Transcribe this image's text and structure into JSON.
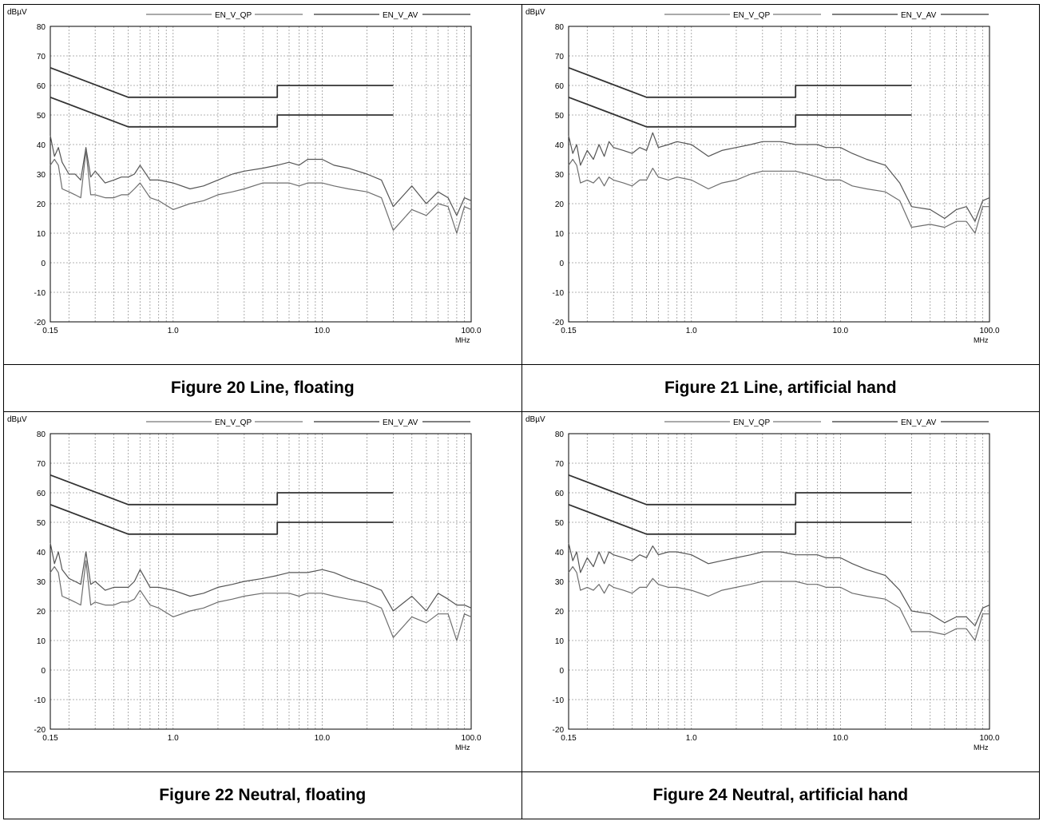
{
  "header_fragment": "  ",
  "colors": {
    "qp_trace": "#555555",
    "av_trace": "#6e6e6e",
    "limit_line": "#333333",
    "grid": "#9a9a9a",
    "border": "#000000"
  },
  "figures": [
    {
      "caption": "Figure 20 Line, floating"
    },
    {
      "caption": "Figure 21 Line, artificial hand"
    },
    {
      "caption": "Figure 22 Neutral, floating"
    },
    {
      "caption": "Figure 24 Neutral, artificial hand"
    }
  ],
  "chart_data": [
    {
      "type": "line",
      "ylabel": "dBµV",
      "xlabel": "MHz",
      "x_scale": "log",
      "xlim": [
        0.15,
        100
      ],
      "ylim": [
        -20,
        80
      ],
      "x_tick_labels": [
        "0.15",
        "1.0",
        "10.0",
        "100.0"
      ],
      "y_tick_labels": [
        "80",
        "70",
        "60",
        "50",
        "40",
        "30",
        "20",
        "10",
        "0",
        "-10",
        "-20"
      ],
      "grid": true,
      "legend": "top",
      "series": [
        {
          "name": "EN_V_QP",
          "kind": "limit",
          "x": [
            0.15,
            0.5,
            0.5,
            5,
            5,
            30
          ],
          "y": [
            66,
            56,
            56,
            56,
            60,
            60
          ]
        },
        {
          "name": "EN_V_AV",
          "kind": "limit",
          "x": [
            0.15,
            0.5,
            0.5,
            5,
            5,
            30
          ],
          "y": [
            56,
            46,
            46,
            46,
            50,
            50
          ]
        },
        {
          "kind": "measured_qp",
          "x": [
            0.15,
            0.16,
            0.17,
            0.18,
            0.2,
            0.22,
            0.24,
            0.26,
            0.28,
            0.3,
            0.35,
            0.4,
            0.45,
            0.5,
            0.55,
            0.6,
            0.7,
            0.8,
            1.0,
            1.3,
            1.6,
            2,
            2.5,
            3,
            4,
            5,
            6,
            7,
            8,
            10,
            12,
            15,
            20,
            25,
            30,
            40,
            50,
            60,
            70,
            80,
            90,
            100
          ],
          "y": [
            43,
            36,
            39,
            34,
            30,
            30,
            28,
            39,
            29,
            31,
            27,
            28,
            29,
            29,
            30,
            33,
            28,
            28,
            27,
            25,
            26,
            28,
            30,
            31,
            32,
            33,
            34,
            33,
            35,
            35,
            33,
            32,
            30,
            28,
            19,
            26,
            20,
            24,
            22,
            16,
            22,
            21
          ]
        },
        {
          "kind": "measured_av",
          "x": [
            0.15,
            0.16,
            0.17,
            0.18,
            0.2,
            0.22,
            0.24,
            0.26,
            0.28,
            0.3,
            0.35,
            0.4,
            0.45,
            0.5,
            0.55,
            0.6,
            0.7,
            0.8,
            1.0,
            1.3,
            1.6,
            2,
            2.5,
            3,
            4,
            5,
            6,
            7,
            8,
            10,
            12,
            15,
            20,
            25,
            30,
            40,
            50,
            60,
            70,
            80,
            90,
            100
          ],
          "y": [
            33,
            35,
            33,
            25,
            24,
            23,
            22,
            38,
            23,
            23,
            22,
            22,
            23,
            23,
            25,
            27,
            22,
            21,
            18,
            20,
            21,
            23,
            24,
            25,
            27,
            27,
            27,
            26,
            27,
            27,
            26,
            25,
            24,
            22,
            11,
            18,
            16,
            20,
            19,
            10,
            19,
            18
          ]
        }
      ]
    },
    {
      "type": "line",
      "ylabel": "dBµV",
      "xlabel": "MHz",
      "x_scale": "log",
      "xlim": [
        0.15,
        100
      ],
      "ylim": [
        -20,
        80
      ],
      "x_tick_labels": [
        "0.15",
        "1.0",
        "10.0",
        "100.0"
      ],
      "y_tick_labels": [
        "80",
        "70",
        "60",
        "50",
        "40",
        "30",
        "20",
        "10",
        "0",
        "-10",
        "-20"
      ],
      "grid": true,
      "legend": "top",
      "series": [
        {
          "name": "EN_V_QP",
          "kind": "limit",
          "x": [
            0.15,
            0.5,
            0.5,
            5,
            5,
            30
          ],
          "y": [
            66,
            56,
            56,
            56,
            60,
            60
          ]
        },
        {
          "name": "EN_V_AV",
          "kind": "limit",
          "x": [
            0.15,
            0.5,
            0.5,
            5,
            5,
            30
          ],
          "y": [
            56,
            46,
            46,
            46,
            50,
            50
          ]
        },
        {
          "kind": "measured_qp",
          "x": [
            0.15,
            0.16,
            0.17,
            0.18,
            0.2,
            0.22,
            0.24,
            0.26,
            0.28,
            0.3,
            0.35,
            0.4,
            0.45,
            0.5,
            0.55,
            0.6,
            0.7,
            0.8,
            1.0,
            1.3,
            1.6,
            2,
            2.5,
            3,
            4,
            5,
            6,
            7,
            8,
            10,
            12,
            15,
            20,
            25,
            30,
            40,
            50,
            60,
            70,
            80,
            90,
            100
          ],
          "y": [
            43,
            37,
            40,
            33,
            38,
            35,
            40,
            36,
            41,
            39,
            38,
            37,
            39,
            38,
            44,
            39,
            40,
            41,
            40,
            36,
            38,
            39,
            40,
            41,
            41,
            40,
            40,
            40,
            39,
            39,
            37,
            35,
            33,
            27,
            19,
            18,
            15,
            18,
            19,
            14,
            21,
            22
          ]
        },
        {
          "kind": "measured_av",
          "x": [
            0.15,
            0.16,
            0.17,
            0.18,
            0.2,
            0.22,
            0.24,
            0.26,
            0.28,
            0.3,
            0.35,
            0.4,
            0.45,
            0.5,
            0.55,
            0.6,
            0.7,
            0.8,
            1.0,
            1.3,
            1.6,
            2,
            2.5,
            3,
            4,
            5,
            6,
            7,
            8,
            10,
            12,
            15,
            20,
            25,
            30,
            40,
            50,
            60,
            70,
            80,
            90,
            100
          ],
          "y": [
            33,
            35,
            33,
            27,
            28,
            27,
            29,
            26,
            29,
            28,
            27,
            26,
            28,
            28,
            32,
            29,
            28,
            29,
            28,
            25,
            27,
            28,
            30,
            31,
            31,
            31,
            30,
            29,
            28,
            28,
            26,
            25,
            24,
            21,
            12,
            13,
            12,
            14,
            14,
            10,
            19,
            19
          ]
        }
      ]
    },
    {
      "type": "line",
      "ylabel": "dBµV",
      "xlabel": "MHz",
      "x_scale": "log",
      "xlim": [
        0.15,
        100
      ],
      "ylim": [
        -20,
        80
      ],
      "x_tick_labels": [
        "0.15",
        "1.0",
        "10.0",
        "100.0"
      ],
      "y_tick_labels": [
        "80",
        "70",
        "60",
        "50",
        "40",
        "30",
        "20",
        "10",
        "0",
        "-10",
        "-20"
      ],
      "grid": true,
      "legend": "top",
      "series": [
        {
          "name": "EN_V_QP",
          "kind": "limit",
          "x": [
            0.15,
            0.5,
            0.5,
            5,
            5,
            30
          ],
          "y": [
            66,
            56,
            56,
            56,
            60,
            60
          ]
        },
        {
          "name": "EN_V_AV",
          "kind": "limit",
          "x": [
            0.15,
            0.5,
            0.5,
            5,
            5,
            30
          ],
          "y": [
            56,
            46,
            46,
            46,
            50,
            50
          ]
        },
        {
          "kind": "measured_qp",
          "x": [
            0.15,
            0.16,
            0.17,
            0.18,
            0.2,
            0.22,
            0.24,
            0.26,
            0.28,
            0.3,
            0.35,
            0.4,
            0.45,
            0.5,
            0.55,
            0.6,
            0.7,
            0.8,
            1.0,
            1.3,
            1.6,
            2,
            2.5,
            3,
            4,
            5,
            6,
            7,
            8,
            10,
            12,
            15,
            20,
            25,
            30,
            40,
            50,
            60,
            70,
            80,
            90,
            100
          ],
          "y": [
            43,
            36,
            40,
            34,
            31,
            30,
            29,
            40,
            29,
            30,
            27,
            28,
            28,
            28,
            30,
            34,
            28,
            28,
            27,
            25,
            26,
            28,
            29,
            30,
            31,
            32,
            33,
            33,
            33,
            34,
            33,
            31,
            29,
            27,
            20,
            25,
            20,
            26,
            24,
            22,
            22,
            21
          ]
        },
        {
          "kind": "measured_av",
          "x": [
            0.15,
            0.16,
            0.17,
            0.18,
            0.2,
            0.22,
            0.24,
            0.26,
            0.28,
            0.3,
            0.35,
            0.4,
            0.45,
            0.5,
            0.55,
            0.6,
            0.7,
            0.8,
            1.0,
            1.3,
            1.6,
            2,
            2.5,
            3,
            4,
            5,
            6,
            7,
            8,
            10,
            12,
            15,
            20,
            25,
            30,
            40,
            50,
            60,
            70,
            80,
            90,
            100
          ],
          "y": [
            33,
            35,
            33,
            25,
            24,
            23,
            22,
            37,
            22,
            23,
            22,
            22,
            23,
            23,
            24,
            27,
            22,
            21,
            18,
            20,
            21,
            23,
            24,
            25,
            26,
            26,
            26,
            25,
            26,
            26,
            25,
            24,
            23,
            21,
            11,
            18,
            16,
            19,
            19,
            10,
            19,
            18
          ]
        }
      ]
    },
    {
      "type": "line",
      "ylabel": "dBµV",
      "xlabel": "MHz",
      "x_scale": "log",
      "xlim": [
        0.15,
        100
      ],
      "ylim": [
        -20,
        80
      ],
      "x_tick_labels": [
        "0.15",
        "1.0",
        "10.0",
        "100.0"
      ],
      "y_tick_labels": [
        "80",
        "70",
        "60",
        "50",
        "40",
        "30",
        "20",
        "10",
        "0",
        "-10",
        "-20"
      ],
      "grid": true,
      "legend": "top",
      "series": [
        {
          "name": "EN_V_QP",
          "kind": "limit",
          "x": [
            0.15,
            0.5,
            0.5,
            5,
            5,
            30
          ],
          "y": [
            66,
            56,
            56,
            56,
            60,
            60
          ]
        },
        {
          "name": "EN_V_AV",
          "kind": "limit",
          "x": [
            0.15,
            0.5,
            0.5,
            5,
            5,
            30
          ],
          "y": [
            56,
            46,
            46,
            46,
            50,
            50
          ]
        },
        {
          "kind": "measured_qp",
          "x": [
            0.15,
            0.16,
            0.17,
            0.18,
            0.2,
            0.22,
            0.24,
            0.26,
            0.28,
            0.3,
            0.35,
            0.4,
            0.45,
            0.5,
            0.55,
            0.6,
            0.7,
            0.8,
            1.0,
            1.3,
            1.6,
            2,
            2.5,
            3,
            4,
            5,
            6,
            7,
            8,
            10,
            12,
            15,
            20,
            25,
            30,
            40,
            50,
            60,
            70,
            80,
            90,
            100
          ],
          "y": [
            43,
            37,
            40,
            33,
            38,
            35,
            40,
            36,
            40,
            39,
            38,
            37,
            39,
            38,
            42,
            39,
            40,
            40,
            39,
            36,
            37,
            38,
            39,
            40,
            40,
            39,
            39,
            39,
            38,
            38,
            36,
            34,
            32,
            27,
            20,
            19,
            16,
            18,
            18,
            15,
            21,
            22
          ]
        },
        {
          "kind": "measured_av",
          "x": [
            0.15,
            0.16,
            0.17,
            0.18,
            0.2,
            0.22,
            0.24,
            0.26,
            0.28,
            0.3,
            0.35,
            0.4,
            0.45,
            0.5,
            0.55,
            0.6,
            0.7,
            0.8,
            1.0,
            1.3,
            1.6,
            2,
            2.5,
            3,
            4,
            5,
            6,
            7,
            8,
            10,
            12,
            15,
            20,
            25,
            30,
            40,
            50,
            60,
            70,
            80,
            90,
            100
          ],
          "y": [
            33,
            35,
            33,
            27,
            28,
            27,
            29,
            26,
            29,
            28,
            27,
            26,
            28,
            28,
            31,
            29,
            28,
            28,
            27,
            25,
            27,
            28,
            29,
            30,
            30,
            30,
            29,
            29,
            28,
            28,
            26,
            25,
            24,
            21,
            13,
            13,
            12,
            14,
            14,
            10,
            19,
            19
          ]
        }
      ]
    }
  ]
}
